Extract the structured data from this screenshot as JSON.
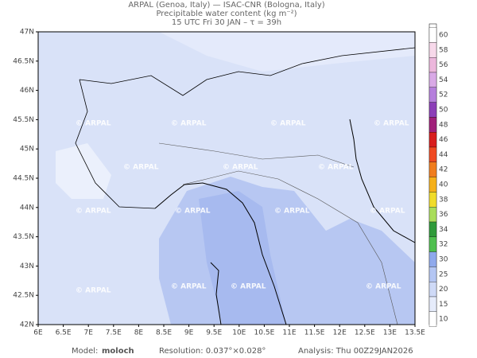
{
  "header": {
    "line1": "ARPAL (Genoa, Italy)  —  ISAC-CNR (Bologna, Italy)",
    "line2": "Precipitable water content (kg m⁻²)",
    "line3": "15 UTC Fri 30 JAN  –  τ = 39h"
  },
  "map": {
    "lat_labels": [
      "47N",
      "46.5N",
      "46N",
      "45.5N",
      "45N",
      "44.5N",
      "44N",
      "43.5N",
      "43N",
      "42.5N",
      "42N"
    ],
    "lon_labels": [
      "6E",
      "6.5E",
      "7E",
      "7.5E",
      "8E",
      "8.5E",
      "9E",
      "9.5E",
      "10E",
      "10.5E",
      "11E",
      "11.5E",
      "12E",
      "12.5E",
      "13E",
      "13.5E"
    ],
    "watermark": "© ARPAL"
  },
  "colorbar": {
    "labels": [
      60,
      58,
      56,
      54,
      52,
      50,
      48,
      46,
      44,
      42,
      40,
      38,
      36,
      34,
      32,
      30,
      25,
      20,
      15,
      10
    ],
    "colors": [
      "#ffffff",
      "#f7d9ea",
      "#ecb7dc",
      "#d9a9e6",
      "#b57fdc",
      "#8c3fb8",
      "#a0207a",
      "#d81e1e",
      "#ef4a22",
      "#f07d1e",
      "#f5b01a",
      "#f0dc2a",
      "#a9dd5a",
      "#2f9a3a",
      "#4fbf4f",
      "#8fa9ec",
      "#b4c6f3",
      "#cfdaf7",
      "#e6ecfb",
      "#ffffff"
    ]
  },
  "footer": {
    "model_label": "Model:",
    "model": "moloch",
    "resolution": "Resolution: 0.037°×0.028°",
    "analysis": "Analysis: Thu 00Z29JAN2026"
  }
}
